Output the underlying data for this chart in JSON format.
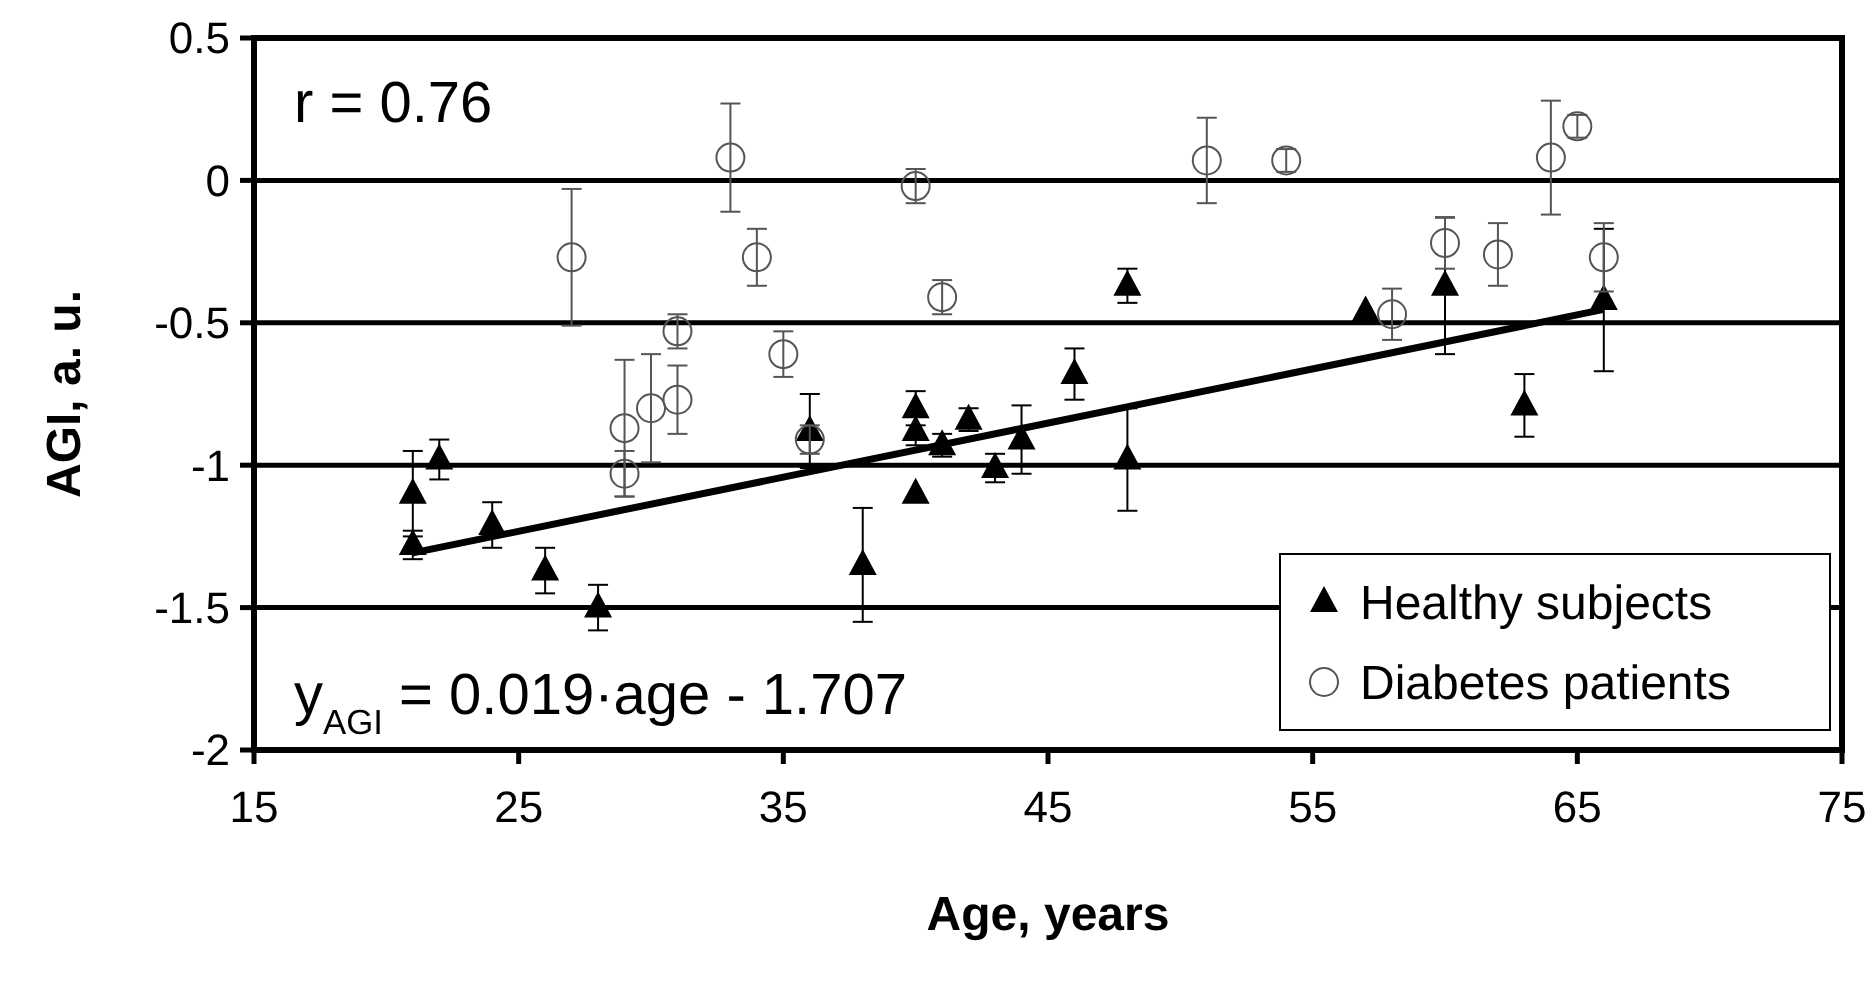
{
  "chart_data": {
    "type": "scatter",
    "xlabel": "Age, years",
    "ylabel": "AGI, a. u.",
    "xlim": [
      15,
      75
    ],
    "xticks": [
      15,
      25,
      35,
      45,
      55,
      65,
      75
    ],
    "ylim": [
      -2,
      0.5
    ],
    "yticks": [
      -2,
      -1.5,
      -1,
      -0.5,
      0,
      0.5
    ],
    "grid": "y",
    "legend": "bottom right",
    "annotations": [
      "r = 0.76",
      "y$_{AGI}$ = 0.019·age - 1.707"
    ],
    "series": [
      {
        "name": "Healthy subjects",
        "color": "#000000",
        "marker": "triangle",
        "x": [
          21,
          21,
          22,
          24,
          26,
          28,
          36,
          38,
          40,
          40,
          40,
          41,
          42,
          43,
          44,
          46,
          48,
          48,
          57,
          60,
          63,
          66
        ],
        "values": [
          -1.1,
          -1.28,
          -0.98,
          -1.21,
          -1.37,
          -1.5,
          -0.88,
          -1.35,
          -0.8,
          -0.88,
          -1.1,
          -0.93,
          -0.84,
          -1.01,
          -0.91,
          -0.68,
          -0.98,
          -0.37,
          -0.46,
          -0.37,
          -0.79,
          -0.42
        ],
        "errors": [
          0.15,
          0.05,
          0.07,
          0.08,
          0.08,
          0.08,
          0.13,
          0.2,
          0.06,
          0.05,
          null,
          0.04,
          0.04,
          0.05,
          0.12,
          0.09,
          0.18,
          0.06,
          null,
          0.24,
          0.11,
          0.25
        ]
      },
      {
        "name": "Diabetes patients",
        "color": "#555555",
        "marker": "circle",
        "x": [
          27,
          29,
          29,
          30,
          31,
          31,
          33,
          34,
          35,
          36,
          40,
          41,
          51,
          54,
          58,
          60,
          62,
          64,
          65,
          66
        ],
        "values": [
          -0.27,
          -0.87,
          -1.03,
          -0.8,
          -0.77,
          -0.53,
          0.08,
          -0.27,
          -0.61,
          -0.91,
          -0.02,
          -0.41,
          0.07,
          0.07,
          -0.47,
          -0.22,
          -0.26,
          0.08,
          0.19,
          -0.27
        ],
        "errors": [
          0.24,
          0.24,
          0.08,
          0.19,
          0.12,
          0.06,
          0.19,
          0.1,
          0.08,
          0.05,
          0.06,
          0.06,
          0.15,
          0.04,
          0.09,
          0.09,
          0.11,
          0.2,
          0.04,
          0.12
        ]
      },
      {
        "type": "line",
        "color": "#000000",
        "marker": "none",
        "x": [
          21,
          66
        ],
        "values": [
          -1.308,
          -0.453
        ]
      }
    ]
  }
}
